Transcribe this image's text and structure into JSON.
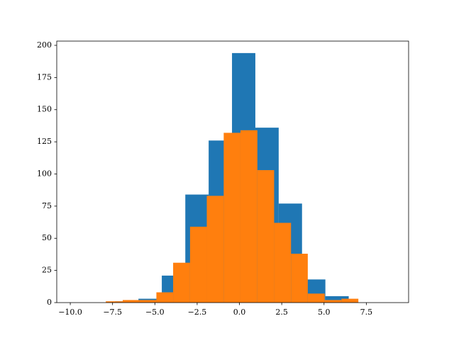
{
  "chart_data": {
    "type": "histogram",
    "series": [
      {
        "color": "#1f77b4",
        "bins": [
          -7.35,
          -5.97,
          -4.59,
          -3.2,
          -1.82,
          -0.44,
          0.94,
          2.32,
          3.7,
          5.08,
          6.46
        ],
        "values": [
          1,
          3,
          21,
          84,
          126,
          194,
          136,
          77,
          18,
          5
        ]
      },
      {
        "color": "#ff7f0e",
        "bins": [
          -7.9,
          -6.9,
          -5.91,
          -4.91,
          -3.92,
          -2.92,
          -1.93,
          -0.93,
          0.06,
          1.06,
          2.05,
          3.05,
          4.04,
          5.04,
          6.03,
          7.03
        ],
        "values": [
          1,
          2,
          2,
          8,
          31,
          59,
          83,
          132,
          134,
          103,
          62,
          38,
          7,
          2,
          3
        ]
      }
    ],
    "xlim": [
      -10.8,
      10.0
    ],
    "xticks": [
      {
        "value": -10,
        "label": "−10.0"
      },
      {
        "value": -7.5,
        "label": "−7.5"
      },
      {
        "value": -5,
        "label": "−5.0"
      },
      {
        "value": -2.5,
        "label": "−2.5"
      },
      {
        "value": 0,
        "label": "0.0"
      },
      {
        "value": 2.5,
        "label": "2.5"
      },
      {
        "value": 5,
        "label": "5.0"
      },
      {
        "value": 7.5,
        "label": "7.5"
      }
    ],
    "ylim": [
      0,
      203.3
    ],
    "yticks": [
      0,
      25,
      50,
      75,
      100,
      125,
      150,
      175,
      200
    ]
  }
}
